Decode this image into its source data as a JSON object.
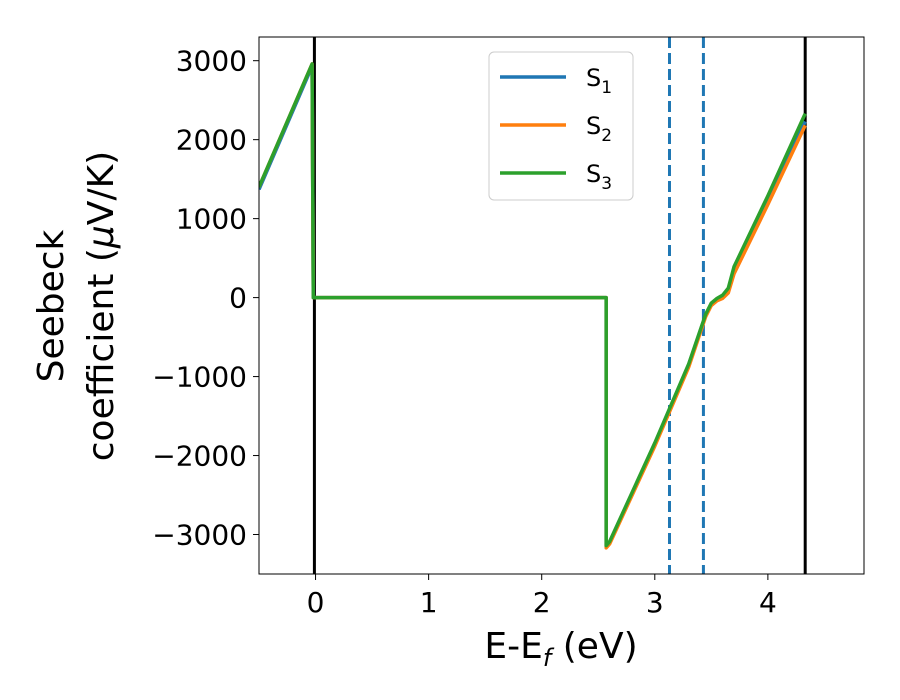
{
  "chart_data": {
    "type": "line",
    "xlabel": "E-E",
    "xlabel_sub": "f",
    "xlabel_unit": " (eV)",
    "ylabel_line1": "Seebeck",
    "ylabel_line2_pre": "coefficient  (",
    "ylabel_line2_mu": "μ",
    "ylabel_line2_post": "V/K)",
    "xlim": [
      -0.5,
      4.85
    ],
    "ylim": [
      -3500,
      3300
    ],
    "xticks": [
      0,
      1,
      2,
      3,
      4
    ],
    "xtick_labels": [
      "0",
      "1",
      "2",
      "3",
      "4"
    ],
    "yticks": [
      -3000,
      -2000,
      -1000,
      0,
      1000,
      2000,
      3000
    ],
    "ytick_labels": [
      "−3000",
      "−2000",
      "−1000",
      "0",
      "1000",
      "2000",
      "3000"
    ],
    "grid": false,
    "legend_position": "top-center",
    "vlines_solid": [
      -0.01,
      4.33
    ],
    "vlines_dashed": [
      3.13,
      3.43
    ],
    "vline_solid_color": "#000000",
    "vline_dashed_color": "#1f77b4",
    "series": [
      {
        "name": "S",
        "sub": "1",
        "color": "#1f77b4",
        "x": [
          -0.5,
          -0.03,
          -0.02,
          2.57,
          2.57,
          2.6,
          3.0,
          3.3,
          3.45,
          3.5,
          3.55,
          3.6,
          3.65,
          3.7,
          4.0,
          4.33
        ],
        "y": [
          1370,
          2930,
          0,
          0,
          -3150,
          -3100,
          -1850,
          -850,
          -220,
          -80,
          -20,
          10,
          90,
          350,
          1230,
          2230
        ]
      },
      {
        "name": "S",
        "sub": "2",
        "color": "#ff7f0e",
        "x": [
          -0.5,
          -0.03,
          -0.02,
          2.57,
          2.57,
          2.6,
          3.0,
          3.3,
          3.45,
          3.5,
          3.55,
          3.6,
          3.65,
          3.7,
          4.0,
          4.33
        ],
        "y": [
          1400,
          2960,
          0,
          0,
          -3170,
          -3120,
          -1880,
          -880,
          -240,
          -100,
          -40,
          -10,
          60,
          300,
          1180,
          2180
        ]
      },
      {
        "name": "S",
        "sub": "3",
        "color": "#2ca02c",
        "x": [
          -0.5,
          -0.03,
          -0.02,
          2.57,
          2.57,
          2.6,
          3.0,
          3.3,
          3.45,
          3.5,
          3.55,
          3.6,
          3.65,
          3.7,
          4.0,
          4.33
        ],
        "y": [
          1400,
          2960,
          0,
          0,
          -3140,
          -3090,
          -1840,
          -840,
          -210,
          -70,
          -10,
          30,
          120,
          390,
          1290,
          2330
        ]
      }
    ]
  }
}
